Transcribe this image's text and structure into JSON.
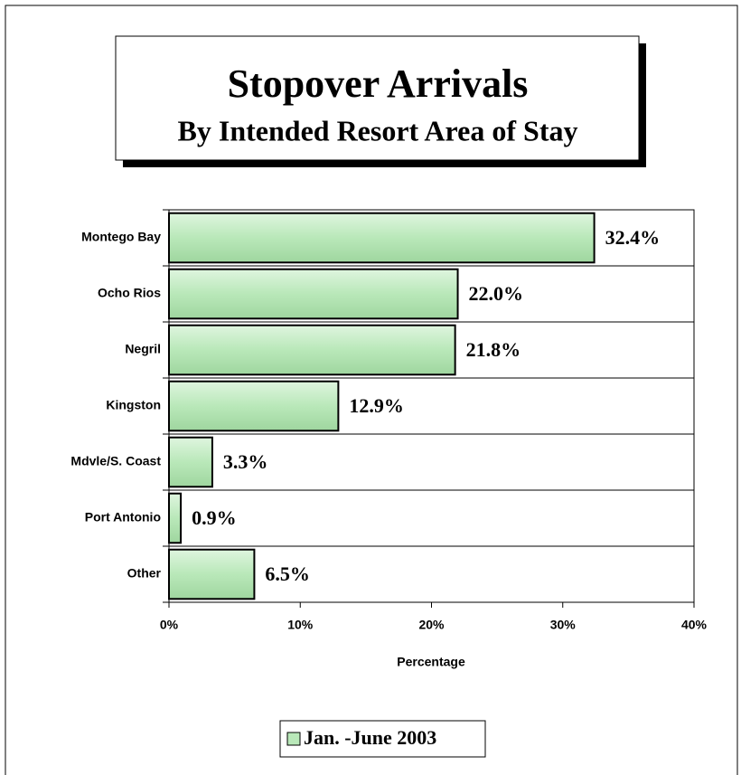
{
  "chart_data": {
    "type": "bar",
    "orientation": "horizontal",
    "title": "Stopover Arrivals",
    "subtitle": "By Intended Resort Area of Stay",
    "categories": [
      "Montego Bay",
      "Ocho Rios",
      "Negril",
      "Kingston",
      "Mdvle/S. Coast",
      "Port Antonio",
      "Other"
    ],
    "series": [
      {
        "name": "Jan. -June 2003",
        "color": "#b9e8b9",
        "values": [
          32.4,
          22.0,
          21.8,
          12.9,
          3.3,
          0.9,
          6.5
        ],
        "value_labels": [
          "32.4%",
          "22.0%",
          "21.8%",
          "12.9%",
          "3.3%",
          "0.9%",
          "6.5%"
        ]
      }
    ],
    "xlabel": "Percentage",
    "xlim": [
      0,
      40
    ],
    "xticks": [
      {
        "value": 0,
        "label": "0%"
      },
      {
        "value": 10,
        "label": "10%"
      },
      {
        "value": 20,
        "label": "20%"
      },
      {
        "value": 30,
        "label": "30%"
      },
      {
        "value": 40,
        "label": "40%"
      }
    ],
    "legend": "bottom"
  }
}
